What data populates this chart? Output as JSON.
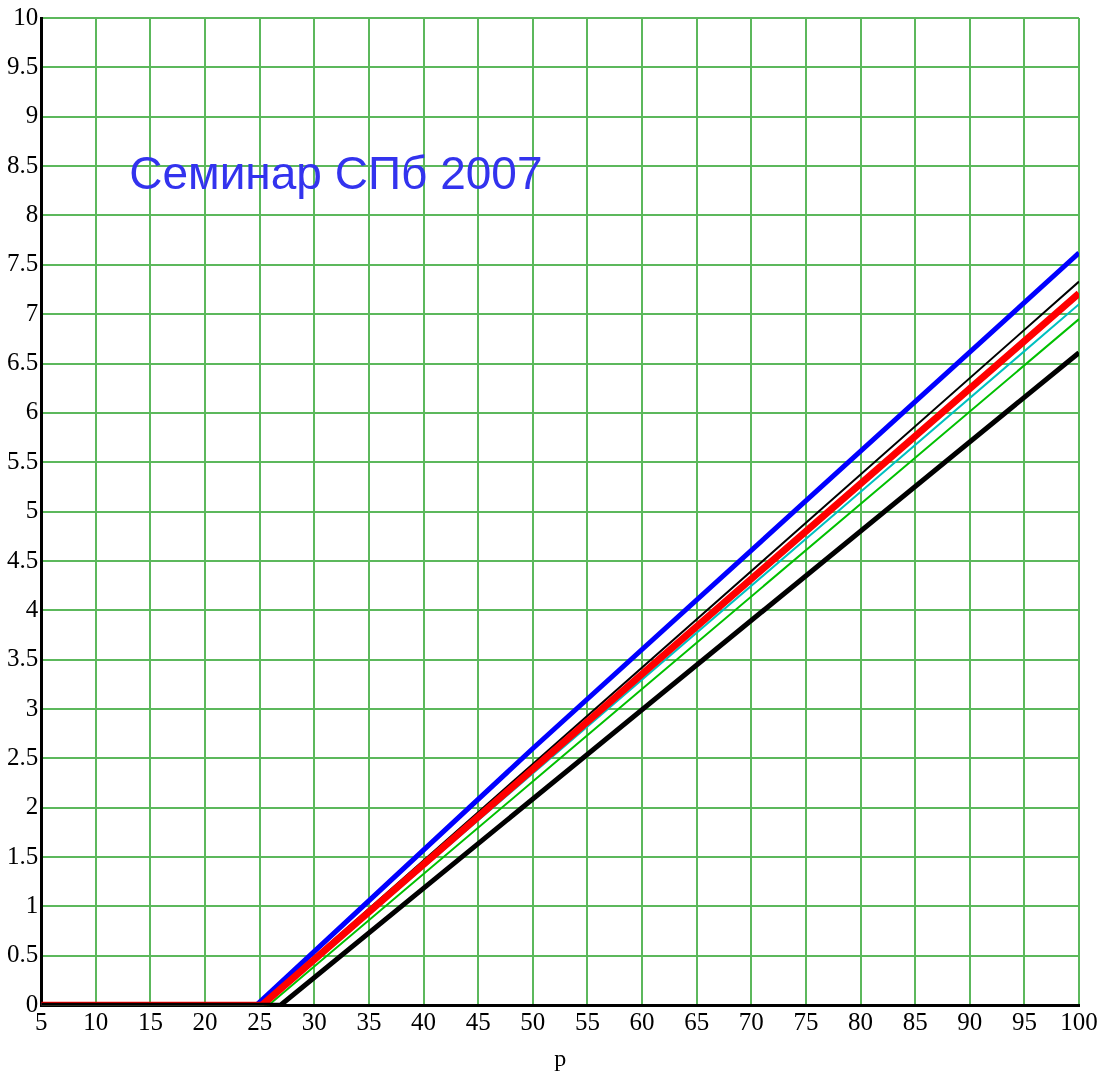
{
  "chart_data": {
    "type": "line",
    "xlabel": "p",
    "annotations": [
      "Семинар СПб 2007"
    ],
    "xlim": [
      5,
      100
    ],
    "xticks": [
      5,
      10,
      15,
      20,
      25,
      30,
      35,
      40,
      45,
      50,
      55,
      60,
      65,
      70,
      75,
      80,
      85,
      90,
      95,
      100
    ],
    "ylim": [
      0,
      10
    ],
    "yticks": [
      0,
      0.5,
      1,
      1.5,
      2,
      2.5,
      3,
      3.5,
      4,
      4.5,
      5,
      5.5,
      6,
      6.5,
      7,
      7.5,
      8,
      8.5,
      9,
      9.5,
      10
    ],
    "grid": true,
    "legend": false,
    "marker": "none",
    "line_style": "solid",
    "series": [
      {
        "color": "#0000ff",
        "x": [
          5,
          24.7,
          50,
          100
        ],
        "values": [
          0,
          0,
          2.6,
          7.62
        ]
      },
      {
        "color": "#000000",
        "x": [
          5,
          25,
          100
        ],
        "values": [
          0,
          0,
          7.33
        ]
      },
      {
        "color": "#00c0c0",
        "x": [
          5,
          25.3,
          100
        ],
        "values": [
          0,
          0,
          7.1
        ]
      },
      {
        "color": "#00c000",
        "x": [
          5,
          25.8,
          100
        ],
        "values": [
          0,
          0,
          6.95
        ]
      },
      {
        "color": "#ff0000",
        "x": [
          5,
          25.2,
          100
        ],
        "values": [
          0,
          0,
          7.21
        ]
      },
      {
        "color": "#000000",
        "x": [
          5,
          26.9,
          100
        ],
        "values": [
          0,
          0,
          6.61
        ]
      }
    ]
  }
}
